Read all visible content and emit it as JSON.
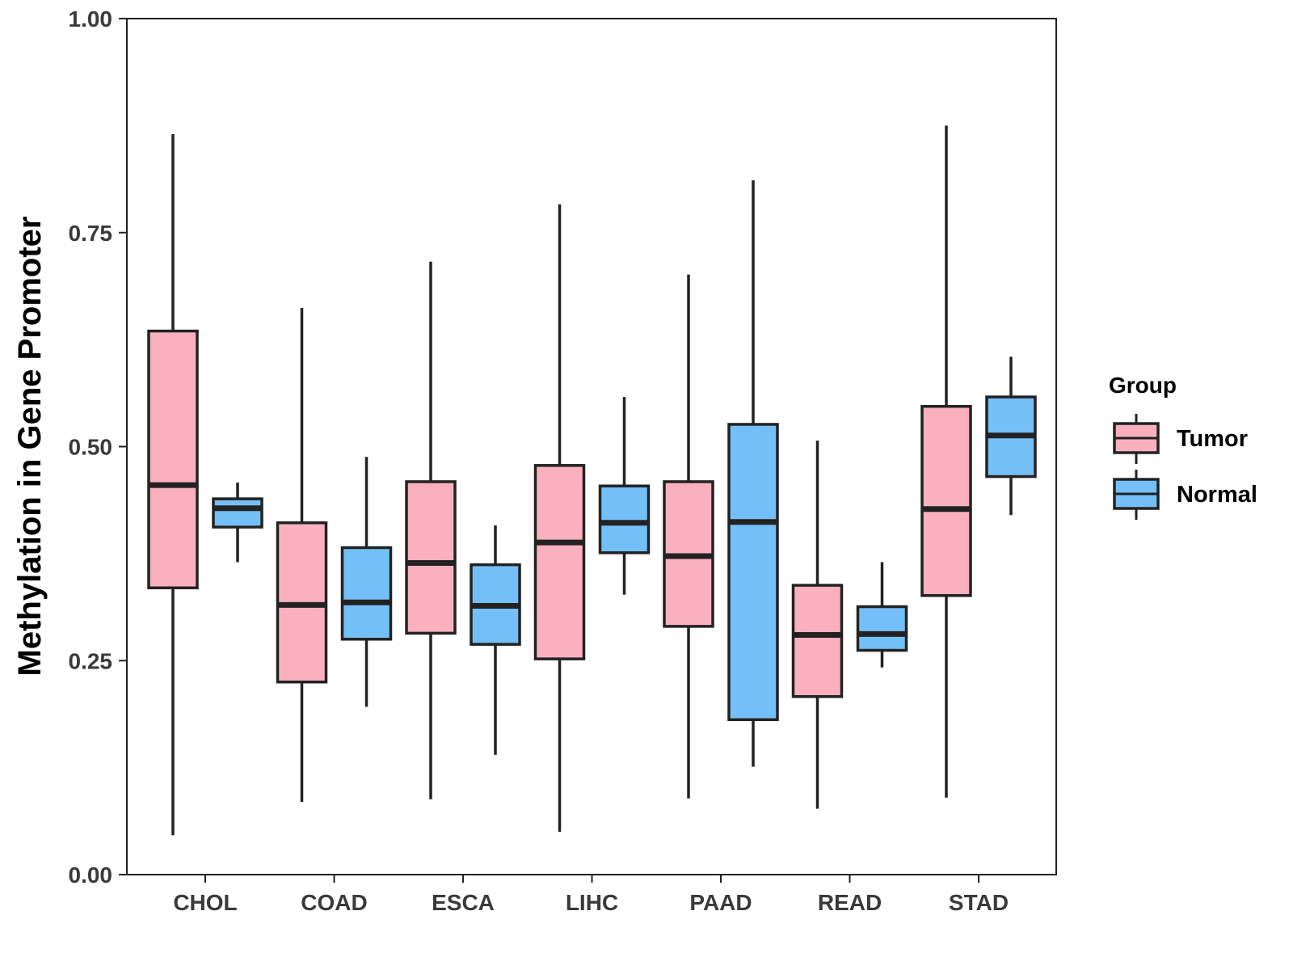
{
  "chart_data": {
    "type": "boxplot",
    "title": "",
    "xlabel": "",
    "ylabel": "Methylation in Gene Promoter",
    "ylim": [
      0,
      1
    ],
    "yticks": [
      "0.00",
      "0.25",
      "0.50",
      "0.75",
      "1.00"
    ],
    "ytick_values": [
      0,
      0.25,
      0.5,
      0.75,
      1.0
    ],
    "categories": [
      "CHOL",
      "COAD",
      "ESCA",
      "LIHC",
      "PAAD",
      "READ",
      "STAD"
    ],
    "legend": {
      "title": "Group",
      "position": "right",
      "entries": [
        "Tumor",
        "Normal"
      ]
    },
    "series": [
      {
        "name": "Tumor",
        "color": "#fbb0c0",
        "boxes": [
          {
            "whisker_low": 0.046,
            "q1": 0.335,
            "median": 0.455,
            "q3": 0.635,
            "whisker_high": 0.865
          },
          {
            "whisker_low": 0.085,
            "q1": 0.225,
            "median": 0.315,
            "q3": 0.411,
            "whisker_high": 0.662
          },
          {
            "whisker_low": 0.088,
            "q1": 0.282,
            "median": 0.364,
            "q3": 0.459,
            "whisker_high": 0.716
          },
          {
            "whisker_low": 0.05,
            "q1": 0.252,
            "median": 0.388,
            "q3": 0.478,
            "whisker_high": 0.783
          },
          {
            "whisker_low": 0.089,
            "q1": 0.29,
            "median": 0.372,
            "q3": 0.459,
            "whisker_high": 0.701
          },
          {
            "whisker_low": 0.077,
            "q1": 0.208,
            "median": 0.28,
            "q3": 0.338,
            "whisker_high": 0.507
          },
          {
            "whisker_low": 0.09,
            "q1": 0.326,
            "median": 0.427,
            "q3": 0.547,
            "whisker_high": 0.875
          }
        ]
      },
      {
        "name": "Normal",
        "color": "#74bff7",
        "boxes": [
          {
            "whisker_low": 0.365,
            "q1": 0.406,
            "median": 0.428,
            "q3": 0.439,
            "whisker_high": 0.458
          },
          {
            "whisker_low": 0.196,
            "q1": 0.275,
            "median": 0.318,
            "q3": 0.382,
            "whisker_high": 0.488
          },
          {
            "whisker_low": 0.14,
            "q1": 0.269,
            "median": 0.314,
            "q3": 0.362,
            "whisker_high": 0.408
          },
          {
            "whisker_low": 0.327,
            "q1": 0.376,
            "median": 0.411,
            "q3": 0.454,
            "whisker_high": 0.558
          },
          {
            "whisker_low": 0.126,
            "q1": 0.181,
            "median": 0.412,
            "q3": 0.526,
            "whisker_high": 0.811
          },
          {
            "whisker_low": 0.242,
            "q1": 0.262,
            "median": 0.281,
            "q3": 0.313,
            "whisker_high": 0.365
          },
          {
            "whisker_low": 0.42,
            "q1": 0.465,
            "median": 0.513,
            "q3": 0.558,
            "whisker_high": 0.605
          }
        ]
      }
    ]
  }
}
